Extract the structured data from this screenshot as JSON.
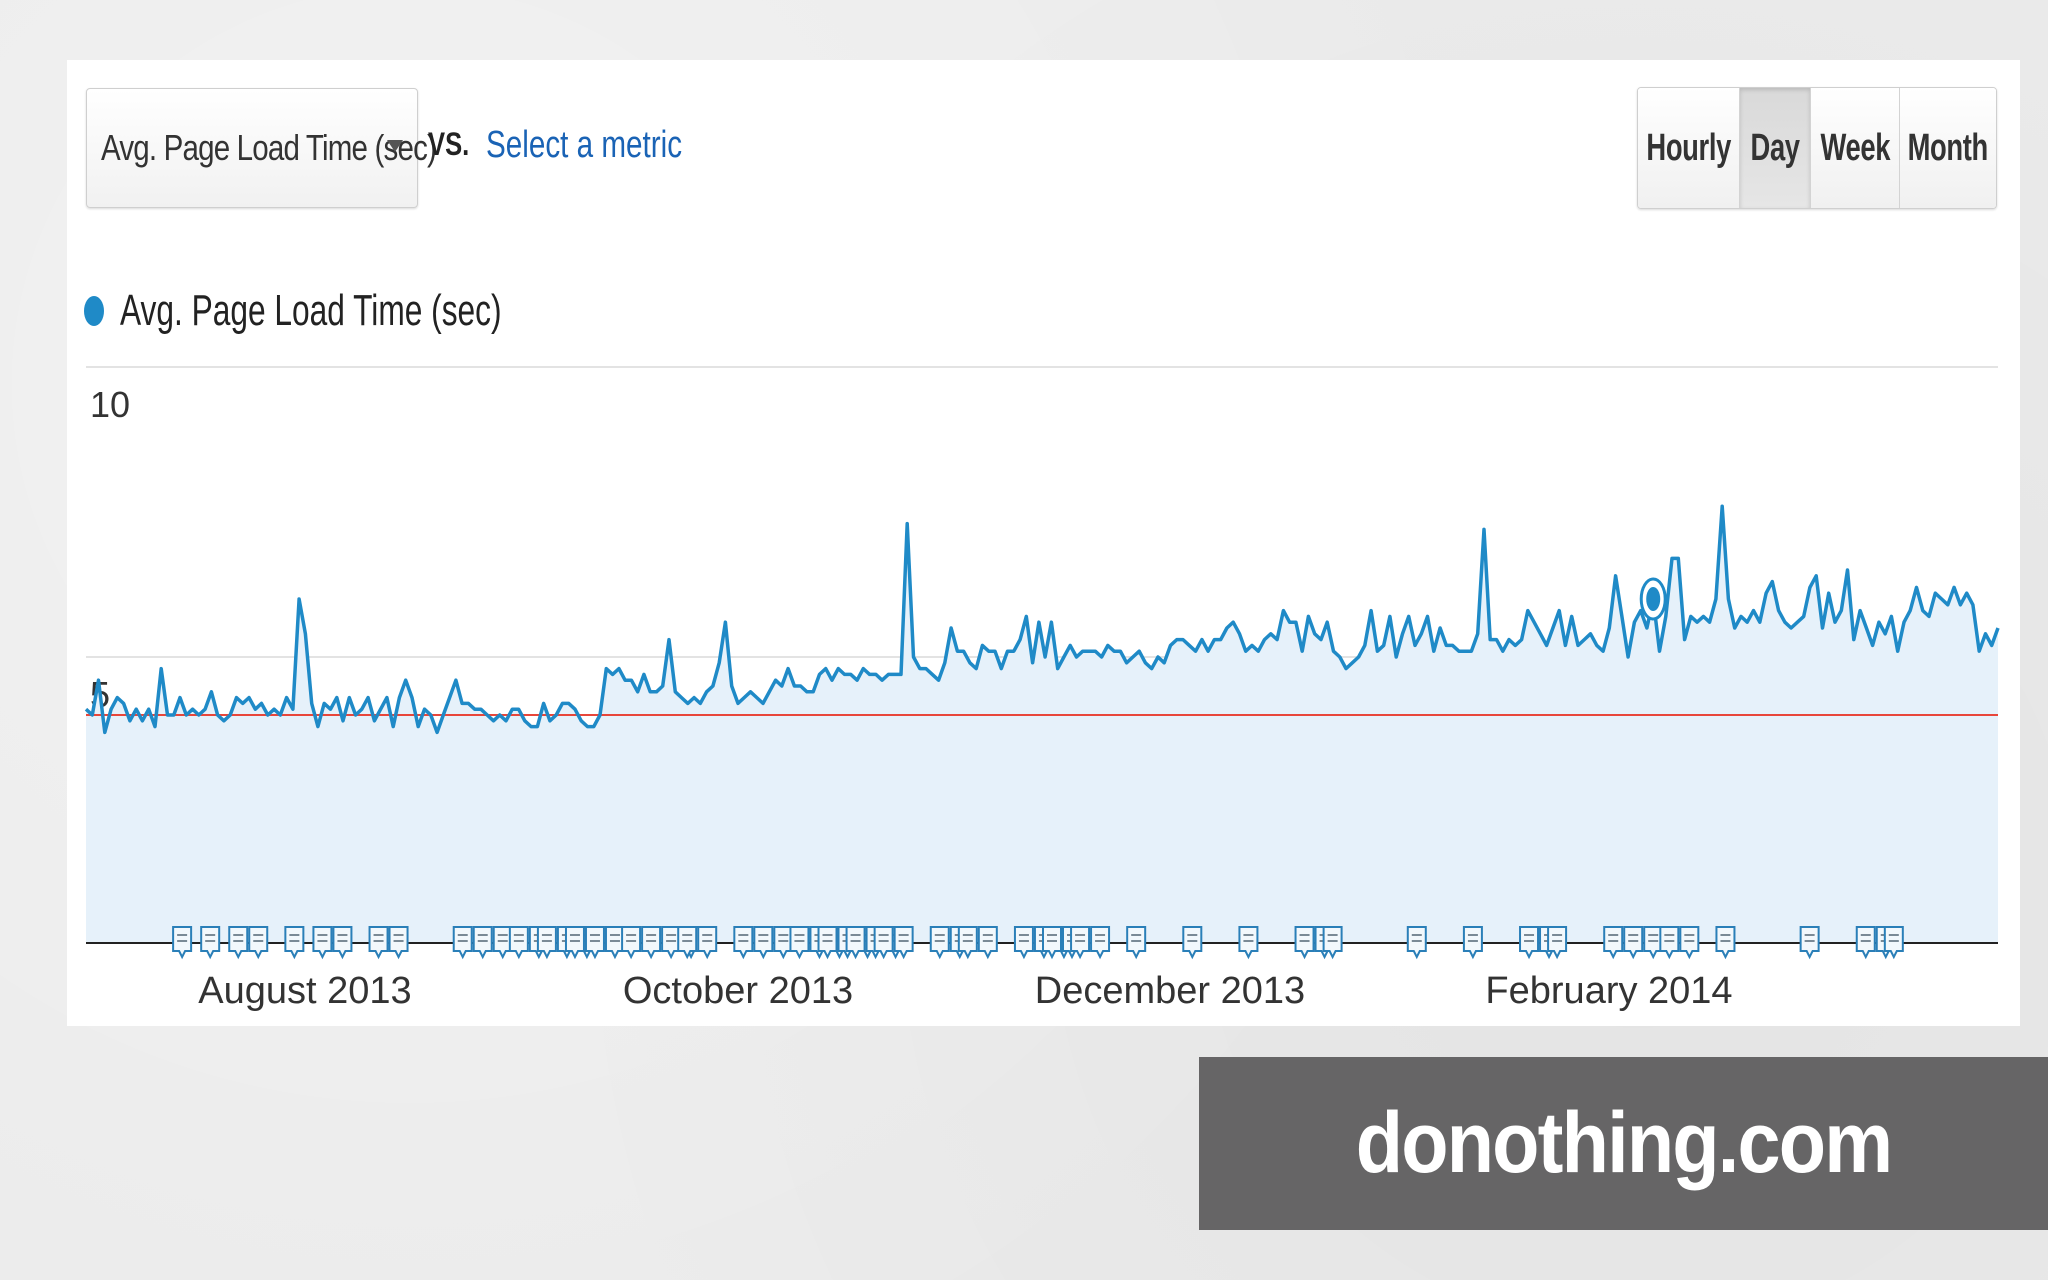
{
  "toolbar": {
    "metric_select": "Avg. Page Load Time (sec)",
    "vs_label": "VS.",
    "compare_link": "Select a metric",
    "granularity": [
      "Hourly",
      "Day",
      "Week",
      "Month"
    ],
    "granularity_active": "Day"
  },
  "legend": {
    "label": "Avg. Page Load Time (sec)",
    "color": "#1f8ac7"
  },
  "chart_data": {
    "type": "area",
    "series": [
      {
        "name": "Avg. Page Load Time (sec)",
        "color": "#1f8ac7",
        "values": [
          4.1,
          4.0,
          4.6,
          3.7,
          4.1,
          4.3,
          4.2,
          3.9,
          4.1,
          3.9,
          4.1,
          3.8,
          4.8,
          4.0,
          4.0,
          4.3,
          4.0,
          4.1,
          4.0,
          4.1,
          4.4,
          4.0,
          3.9,
          4.0,
          4.3,
          4.2,
          4.3,
          4.1,
          4.2,
          4.0,
          4.1,
          4.0,
          4.3,
          4.1,
          6.0,
          5.4,
          4.2,
          3.8,
          4.2,
          4.1,
          4.3,
          3.9,
          4.3,
          4.0,
          4.1,
          4.3,
          3.9,
          4.1,
          4.3,
          3.8,
          4.3,
          4.6,
          4.3,
          3.8,
          4.1,
          4.0,
          3.7,
          4.0,
          4.3,
          4.6,
          4.2,
          4.2,
          4.1,
          4.1,
          4.0,
          3.9,
          4.0,
          3.9,
          4.1,
          4.1,
          3.9,
          3.8,
          3.8,
          4.2,
          3.9,
          4.0,
          4.2,
          4.2,
          4.1,
          3.9,
          3.8,
          3.8,
          4.0,
          4.8,
          4.7,
          4.8,
          4.6,
          4.6,
          4.4,
          4.7,
          4.4,
          4.4,
          4.5,
          5.3,
          4.4,
          4.3,
          4.2,
          4.3,
          4.2,
          4.4,
          4.5,
          4.9,
          5.6,
          4.5,
          4.2,
          4.3,
          4.4,
          4.3,
          4.2,
          4.4,
          4.6,
          4.5,
          4.8,
          4.5,
          4.5,
          4.4,
          4.4,
          4.7,
          4.8,
          4.6,
          4.8,
          4.7,
          4.7,
          4.6,
          4.8,
          4.7,
          4.7,
          4.6,
          4.7,
          4.7,
          4.7,
          7.3,
          5.0,
          4.8,
          4.8,
          4.7,
          4.6,
          4.9,
          5.5,
          5.1,
          5.1,
          4.9,
          4.8,
          5.2,
          5.1,
          5.1,
          4.8,
          5.1,
          5.1,
          5.3,
          5.7,
          4.9,
          5.6,
          5.0,
          5.6,
          4.8,
          5.0,
          5.2,
          5.0,
          5.1,
          5.1,
          5.1,
          5.0,
          5.2,
          5.1,
          5.1,
          4.9,
          5.0,
          5.1,
          4.9,
          4.8,
          5.0,
          4.9,
          5.2,
          5.3,
          5.3,
          5.2,
          5.1,
          5.3,
          5.1,
          5.3,
          5.3,
          5.5,
          5.6,
          5.4,
          5.1,
          5.2,
          5.1,
          5.3,
          5.4,
          5.3,
          5.8,
          5.6,
          5.6,
          5.1,
          5.7,
          5.4,
          5.3,
          5.6,
          5.1,
          5.0,
          4.8,
          4.9,
          5.0,
          5.2,
          5.8,
          5.1,
          5.2,
          5.7,
          5.0,
          5.4,
          5.7,
          5.2,
          5.4,
          5.7,
          5.1,
          5.5,
          5.2,
          5.2,
          5.1,
          5.1,
          5.1,
          5.4,
          7.2,
          5.3,
          5.3,
          5.1,
          5.3,
          5.2,
          5.3,
          5.8,
          5.6,
          5.4,
          5.2,
          5.5,
          5.8,
          5.2,
          5.7,
          5.2,
          5.3,
          5.4,
          5.2,
          5.1,
          5.5,
          6.4,
          5.7,
          5.0,
          5.6,
          5.8,
          5.5,
          6.0,
          5.1,
          5.7,
          6.7,
          6.7,
          5.3,
          5.7,
          5.6,
          5.7,
          5.6,
          6.0,
          7.6,
          6.0,
          5.5,
          5.7,
          5.6,
          5.8,
          5.6,
          6.1,
          6.3,
          5.8,
          5.6,
          5.5,
          5.6,
          5.7,
          6.2,
          6.4,
          5.5,
          6.1,
          5.6,
          5.8,
          6.5,
          5.3,
          5.8,
          5.5,
          5.2,
          5.6,
          5.4,
          5.7,
          5.1,
          5.6,
          5.8,
          6.2,
          5.8,
          5.7,
          6.1,
          6.0,
          5.9,
          6.2,
          5.9,
          6.1,
          5.9,
          5.1,
          5.4,
          5.2,
          5.5
        ]
      }
    ],
    "x_tick_labels": [
      "August 2013",
      "October 2013",
      "December 2013",
      "February 2014"
    ],
    "y_tick_labels": [
      "10",
      "5"
    ],
    "y_ticks": [
      10,
      5
    ],
    "ylim": [
      0,
      10
    ],
    "reference_line": {
      "value": 4.0,
      "color": "#e8463a"
    },
    "highlighted_point_index": 250,
    "annotation_markers": {
      "groups": [
        [
          2,
          1
        ],
        [
          3,
          1
        ],
        [
          4,
          2
        ],
        [
          6,
          1
        ],
        [
          7,
          2
        ],
        [
          9,
          2
        ],
        [
          12,
          3
        ],
        [
          14,
          2
        ],
        [
          15,
          3
        ],
        [
          16,
          3
        ],
        [
          18,
          4
        ],
        [
          20,
          2
        ],
        [
          22,
          3
        ],
        [
          24,
          3
        ],
        [
          25,
          3
        ],
        [
          26,
          3
        ],
        [
          27,
          2
        ],
        [
          29,
          2
        ],
        [
          30,
          2
        ],
        [
          32,
          3
        ],
        [
          33,
          2
        ],
        [
          34,
          2
        ],
        [
          36,
          1
        ],
        [
          38,
          1
        ],
        [
          40,
          1
        ],
        [
          42,
          2
        ],
        [
          43,
          1
        ],
        [
          46,
          1
        ],
        [
          48,
          1
        ],
        [
          50,
          2
        ],
        [
          51,
          1
        ],
        [
          53,
          3
        ],
        [
          55,
          2
        ],
        [
          57,
          1
        ],
        [
          60,
          1
        ],
        [
          62,
          2
        ],
        [
          63,
          1
        ]
      ],
      "slot_count": 66
    }
  },
  "watermark": {
    "text": "donothing.com"
  }
}
